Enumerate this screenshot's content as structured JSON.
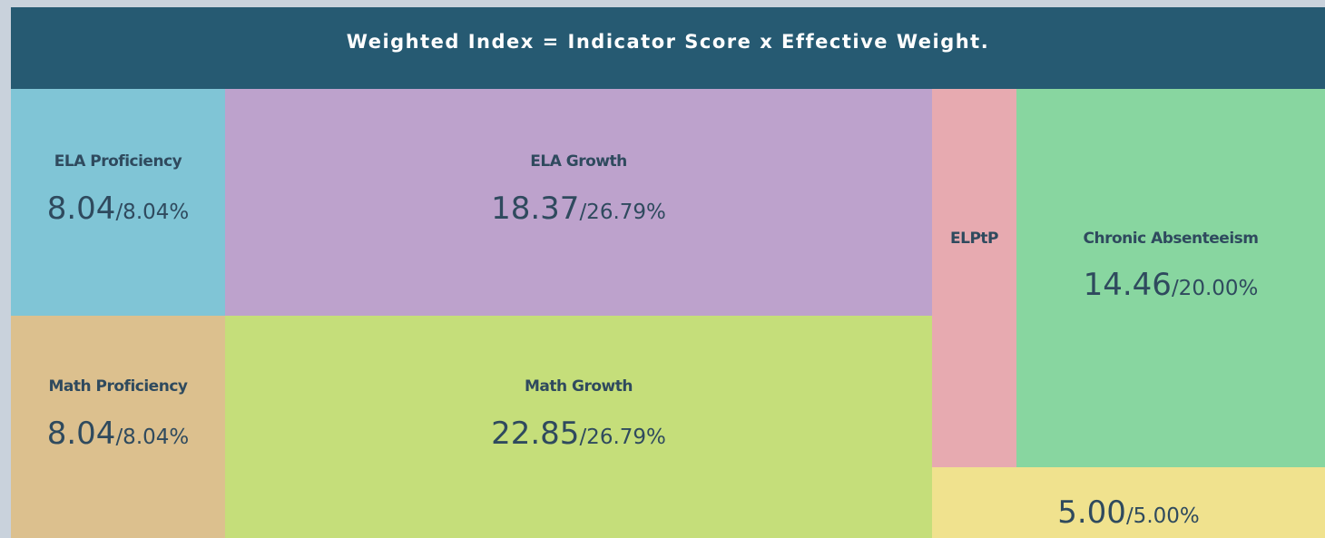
{
  "header": {
    "title": "Weighted Index = Indicator Score x Effective Weight."
  },
  "tiles": [
    {
      "label": "ELA Proficiency",
      "score": "8.04",
      "weight": "/8.04%"
    },
    {
      "label": "ELA Growth",
      "score": "18.37",
      "weight": "/26.79%"
    },
    {
      "label": "ELPtP"
    },
    {
      "label": "Chronic Absenteeism",
      "score": "14.46",
      "weight": "/20.00%"
    },
    {
      "label": "Math Proficiency",
      "score": "8.04",
      "weight": "/8.04%"
    },
    {
      "label": "Math Growth",
      "score": "22.85",
      "weight": "/26.79%"
    },
    {
      "score": "5.00",
      "weight": "/5.00%"
    }
  ]
}
